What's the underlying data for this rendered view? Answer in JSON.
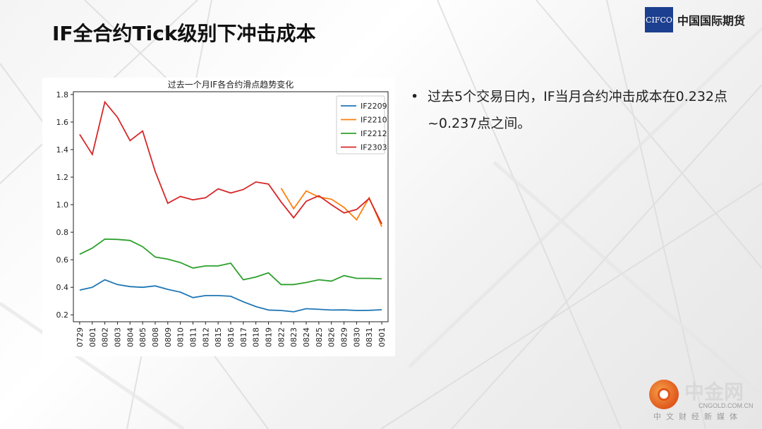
{
  "slide": {
    "title": "IF全合约Tick级别下冲击成本",
    "bullet_mark": "•",
    "bullet_text": "过去5个交易日内，IF当月合约冲击成本在0.232点~0.237点之间。"
  },
  "logo": {
    "mark": "CIFCO",
    "name": "中国国际期货"
  },
  "watermark": {
    "name": "中金网",
    "url": "CNGOLD.COM.CN",
    "sub": "中文财经新媒体"
  },
  "colors": {
    "IF2209": "#1f77b4",
    "IF2210": "#ff7f0e",
    "IF2212": "#2ca02c",
    "IF2303": "#d62728"
  },
  "chart_data": {
    "type": "line",
    "title": "过去一个月IF各合约滑点趋势变化",
    "xlabel": "",
    "ylabel": "",
    "categories": [
      "0729",
      "0801",
      "0802",
      "0803",
      "0804",
      "0805",
      "0808",
      "0809",
      "0810",
      "0811",
      "0812",
      "0815",
      "0816",
      "0817",
      "0818",
      "0819",
      "0822",
      "0823",
      "0824",
      "0825",
      "0826",
      "0829",
      "0830",
      "0831",
      "0901"
    ],
    "ylim": [
      0.15,
      1.82
    ],
    "yticks": [
      "0.2",
      "0.4",
      "0.6",
      "0.8",
      "1.0",
      "1.2",
      "1.4",
      "1.6",
      "1.8"
    ],
    "legend_position": "top-right",
    "grid": false,
    "series": [
      {
        "name": "IF2209",
        "values": [
          0.38,
          0.4,
          0.455,
          0.42,
          0.405,
          0.4,
          0.41,
          0.385,
          0.365,
          0.325,
          0.34,
          0.34,
          0.335,
          0.295,
          0.26,
          0.235,
          0.232,
          0.222,
          0.245,
          0.24,
          0.235,
          0.236,
          0.232,
          0.233,
          0.237
        ]
      },
      {
        "name": "IF2210",
        "values": [
          null,
          null,
          null,
          null,
          null,
          null,
          null,
          null,
          null,
          null,
          null,
          null,
          null,
          null,
          null,
          null,
          1.12,
          0.97,
          1.1,
          1.055,
          1.04,
          0.98,
          0.89,
          1.05,
          0.84
        ]
      },
      {
        "name": "IF2212",
        "values": [
          0.64,
          0.685,
          0.75,
          0.748,
          0.74,
          0.695,
          0.62,
          0.605,
          0.58,
          0.54,
          0.555,
          0.555,
          0.575,
          0.455,
          0.475,
          0.505,
          0.42,
          0.42,
          0.435,
          0.455,
          0.445,
          0.485,
          0.465,
          0.465,
          0.462
        ]
      },
      {
        "name": "IF2303",
        "values": [
          1.51,
          1.365,
          1.745,
          1.635,
          1.465,
          1.535,
          1.24,
          1.01,
          1.06,
          1.035,
          1.05,
          1.115,
          1.085,
          1.11,
          1.165,
          1.15,
          1.02,
          0.905,
          1.025,
          1.065,
          1.0,
          0.94,
          0.965,
          1.045,
          0.86
        ]
      }
    ]
  }
}
